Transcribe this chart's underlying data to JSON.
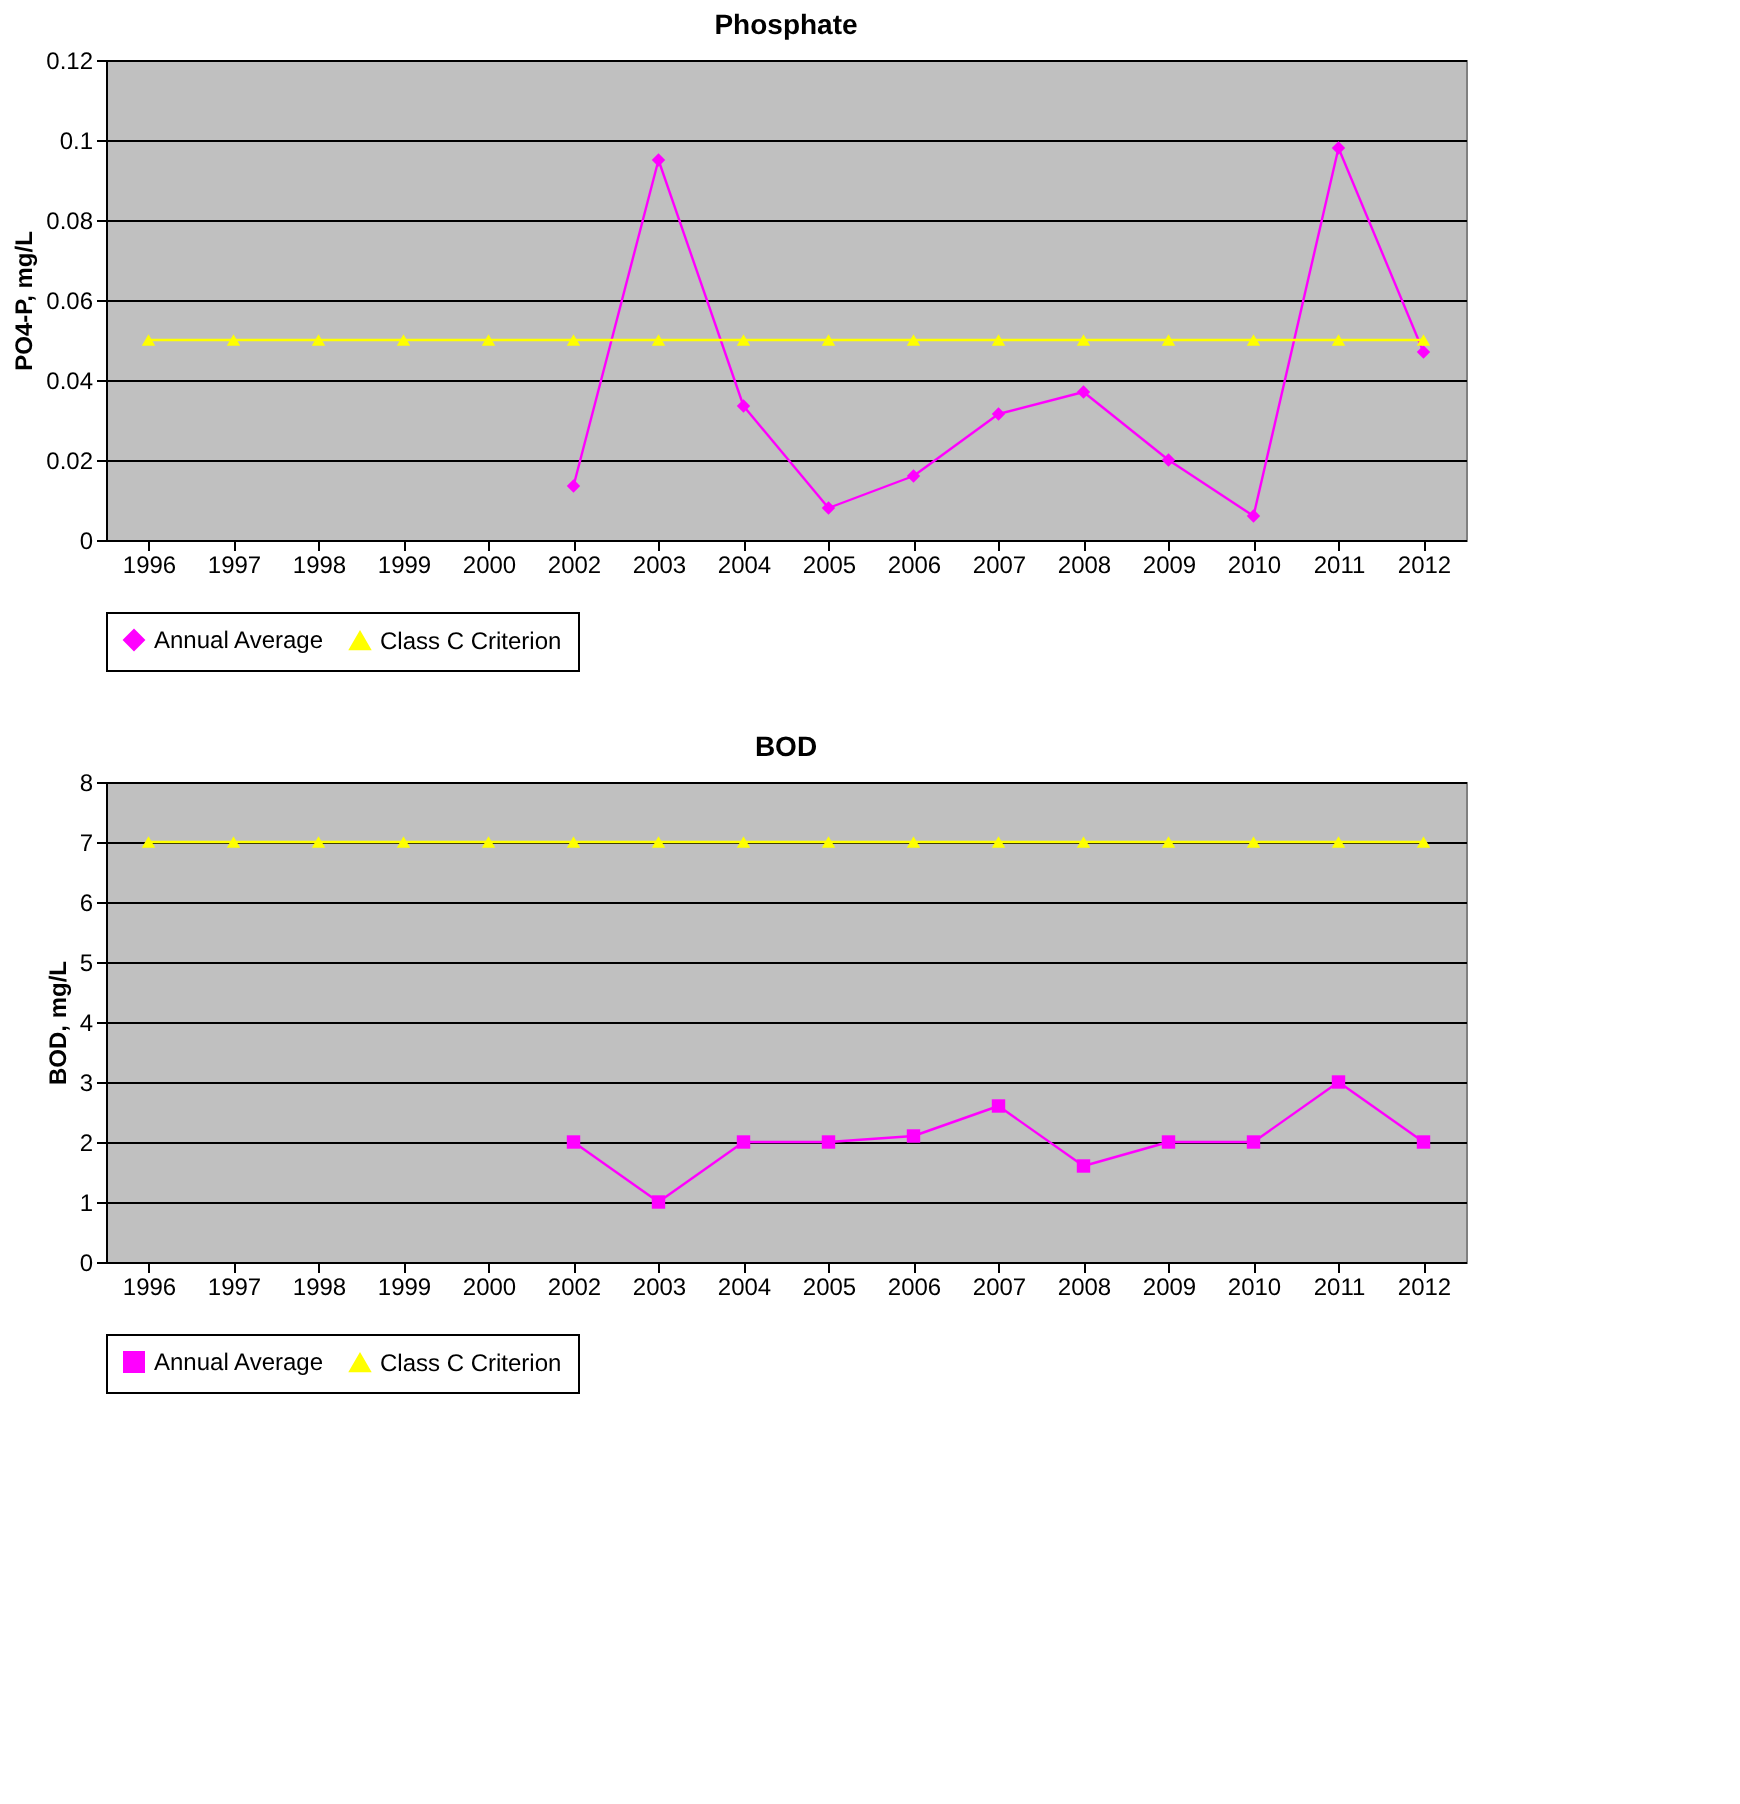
{
  "chart_data": [
    {
      "type": "line",
      "title": "Phosphate",
      "ylabel": "PO4-P, mg/L",
      "categories": [
        "1996",
        "1997",
        "1998",
        "1999",
        "2000",
        "2002",
        "2003",
        "2004",
        "2005",
        "2006",
        "2007",
        "2008",
        "2009",
        "2010",
        "2011",
        "2012"
      ],
      "series": [
        {
          "name": "Annual Average",
          "color": "#ff00ff",
          "marker": "diamond",
          "values": [
            null,
            null,
            null,
            null,
            null,
            0.0135,
            0.095,
            0.0335,
            0.008,
            0.016,
            0.0315,
            0.037,
            0.02,
            0.006,
            0.098,
            0.047
          ]
        },
        {
          "name": "Class C Criterion",
          "color": "#ffff00",
          "marker": "triangle",
          "values": [
            0.05,
            0.05,
            0.05,
            0.05,
            0.05,
            0.05,
            0.05,
            0.05,
            0.05,
            0.05,
            0.05,
            0.05,
            0.05,
            0.05,
            0.05,
            0.05
          ]
        }
      ],
      "ylim": [
        0,
        0.12
      ],
      "yticks": [
        0,
        0.02,
        0.04,
        0.06,
        0.08,
        0.1,
        0.12
      ],
      "grid": "y",
      "legend": "bottom",
      "line_style": "solid"
    },
    {
      "type": "line",
      "title": "BOD",
      "ylabel": "BOD, mg/L",
      "categories": [
        "1996",
        "1997",
        "1998",
        "1999",
        "2000",
        "2002",
        "2003",
        "2004",
        "2005",
        "2006",
        "2007",
        "2008",
        "2009",
        "2010",
        "2011",
        "2012"
      ],
      "series": [
        {
          "name": "Annual Average",
          "color": "#ff00ff",
          "marker": "square",
          "values": [
            null,
            null,
            null,
            null,
            null,
            2,
            1,
            2,
            2,
            2.1,
            2.6,
            1.6,
            2,
            2,
            3,
            2
          ]
        },
        {
          "name": "Class C Criterion",
          "color": "#ffff00",
          "marker": "triangle",
          "values": [
            7,
            7,
            7,
            7,
            7,
            7,
            7,
            7,
            7,
            7,
            7,
            7,
            7,
            7,
            7,
            7
          ]
        }
      ],
      "ylim": [
        0,
        8
      ],
      "yticks": [
        0,
        1,
        2,
        3,
        4,
        5,
        6,
        7,
        8
      ],
      "grid": "y",
      "legend": "bottom",
      "line_style": "solid"
    }
  ]
}
